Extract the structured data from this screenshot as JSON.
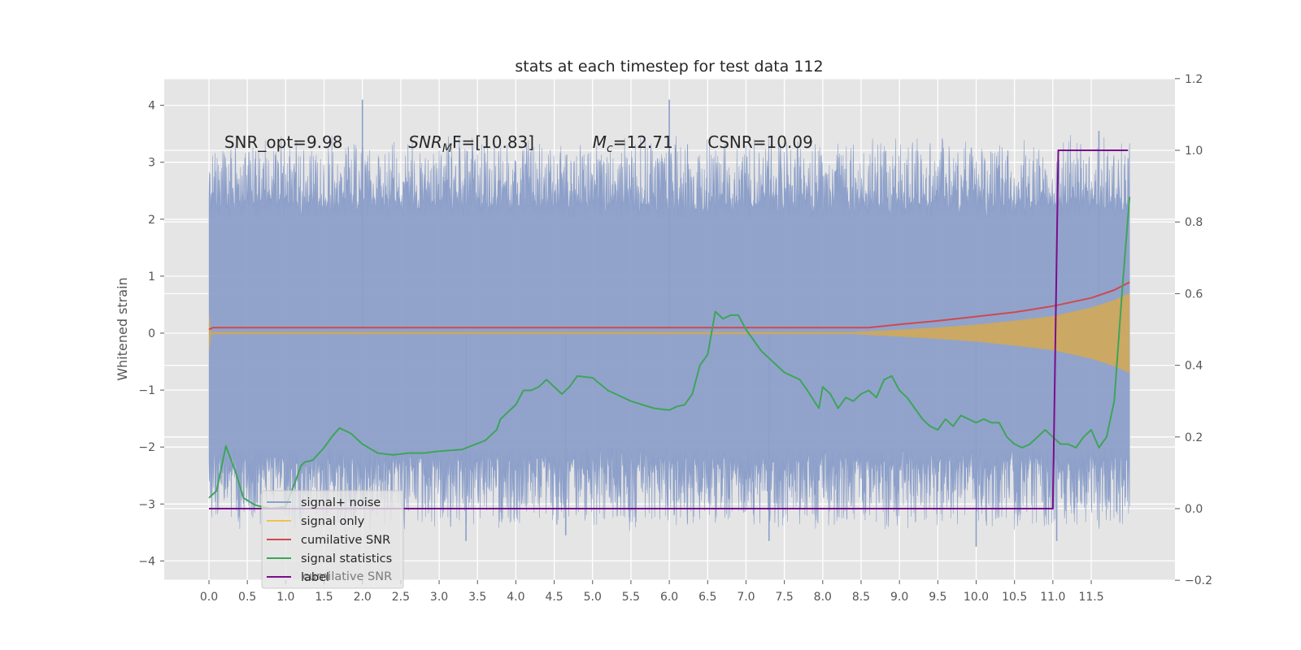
{
  "chart_data": {
    "type": "line",
    "title": "stats at each timestep for test data 112",
    "ylabel": "Whitened strain",
    "xlim": [
      -0.58,
      12.6
    ],
    "ylim": [
      -4.35,
      4.45
    ],
    "y2lim": [
      -0.2,
      1.2
    ],
    "x_ticks": [
      "0.0",
      "0.5",
      "1.0",
      "1.5",
      "2.0",
      "2.5",
      "3.0",
      "3.5",
      "4.0",
      "4.5",
      "5.0",
      "5.5",
      "6.0",
      "6.5",
      "7.0",
      "7.5",
      "8.0",
      "8.5",
      "9.0",
      "9.5",
      "10.0",
      "10.5",
      "11.0",
      "11.5"
    ],
    "y_ticks": [
      "4",
      "3",
      "2",
      "1",
      "0",
      "−1",
      "−2",
      "−3",
      "−4"
    ],
    "y2_ticks": [
      "1.2",
      "1.0",
      "0.8",
      "0.6",
      "0.4",
      "0.2",
      "0.0",
      "−0.2"
    ],
    "grid": true,
    "annotations": [
      {
        "text": "SNR_opt=9.98",
        "x": 0.2,
        "y": 3.35
      },
      {
        "main": "SNR",
        "sub": "M",
        "rest": "F=[10.83]",
        "x": 2.6,
        "y": 3.35
      },
      {
        "main": "M",
        "sub": "c",
        "rest": "=12.71",
        "x": 5.0,
        "y": 3.35
      },
      {
        "text": "CSNR=10.09",
        "x": 6.5,
        "y": 3.35
      }
    ],
    "legend": {
      "placement": "lower-left",
      "entries": [
        {
          "label": "signal+ noise",
          "color": "#8c9fc9"
        },
        {
          "label": "signal only",
          "color": "#f2c14e"
        },
        {
          "label": "cumilative SNR",
          "color": "#d0494f"
        },
        {
          "label": "signal statistics",
          "color": "#3fa45a"
        },
        {
          "label": "label",
          "color": "#7a0d8c"
        }
      ],
      "ghost_text": "cumilative SNR"
    },
    "series": [
      {
        "name": "signal+ noise",
        "axis": "left",
        "color": "#8c9fc9",
        "x_range": [
          0.0,
          12.0
        ],
        "band_low": -2.3,
        "band_high": 2.3,
        "spikes": [
          {
            "x": 2.0,
            "y": 4.1
          },
          {
            "x": 6.0,
            "y": 4.1
          },
          {
            "x": 11.6,
            "y": 3.55
          },
          {
            "x": 10.0,
            "y": -3.75
          },
          {
            "x": 11.05,
            "y": -3.65
          },
          {
            "x": 7.3,
            "y": -3.65
          },
          {
            "x": 3.35,
            "y": -3.65
          },
          {
            "x": 4.65,
            "y": -3.55
          }
        ]
      },
      {
        "name": "signal only",
        "axis": "left",
        "color": "#f2c14e",
        "x": [
          0.0,
          0.03,
          8.4,
          9.0,
          9.5,
          10.0,
          10.5,
          11.0,
          11.5,
          11.8,
          12.0
        ],
        "envelope": [
          0.35,
          0.02,
          0.02,
          0.06,
          0.1,
          0.15,
          0.22,
          0.3,
          0.45,
          0.58,
          0.7
        ]
      },
      {
        "name": "cumilative SNR",
        "axis": "right",
        "color": "#d0494f",
        "x": [
          0.0,
          0.05,
          8.6,
          9.0,
          9.5,
          10.0,
          10.5,
          11.0,
          11.5,
          11.8,
          12.0
        ],
        "y": [
          0.5,
          0.505,
          0.505,
          0.514,
          0.524,
          0.536,
          0.548,
          0.565,
          0.588,
          0.61,
          0.632
        ]
      },
      {
        "name": "signal statistics",
        "axis": "right",
        "color": "#3fa45a",
        "x": [
          0.0,
          0.1,
          0.22,
          0.35,
          0.45,
          0.6,
          0.8,
          1.0,
          1.15,
          1.2,
          1.25,
          1.35,
          1.5,
          1.6,
          1.7,
          1.85,
          2.0,
          2.2,
          2.4,
          2.6,
          2.8,
          3.0,
          3.3,
          3.6,
          3.75,
          3.8,
          3.9,
          4.0,
          4.1,
          4.2,
          4.3,
          4.4,
          4.5,
          4.6,
          4.7,
          4.8,
          5.0,
          5.2,
          5.5,
          5.8,
          6.0,
          6.1,
          6.2,
          6.3,
          6.4,
          6.5,
          6.6,
          6.7,
          6.8,
          6.9,
          7.0,
          7.2,
          7.3,
          7.4,
          7.5,
          7.7,
          7.8,
          7.95,
          8.0,
          8.1,
          8.2,
          8.3,
          8.4,
          8.5,
          8.6,
          8.7,
          8.8,
          8.9,
          9.0,
          9.1,
          9.2,
          9.3,
          9.4,
          9.5,
          9.6,
          9.7,
          9.8,
          9.9,
          10.0,
          10.1,
          10.2,
          10.3,
          10.4,
          10.5,
          10.6,
          10.7,
          10.8,
          10.9,
          11.0,
          11.1,
          11.2,
          11.3,
          11.4,
          11.5,
          11.6,
          11.7,
          11.8,
          11.9,
          12.0
        ],
        "y": [
          0.03,
          0.05,
          0.175,
          0.1,
          0.03,
          0.01,
          0.0,
          0.005,
          0.09,
          0.12,
          0.13,
          0.135,
          0.17,
          0.2,
          0.225,
          0.21,
          0.18,
          0.155,
          0.15,
          0.155,
          0.155,
          0.16,
          0.165,
          0.19,
          0.22,
          0.25,
          0.27,
          0.29,
          0.33,
          0.33,
          0.34,
          0.36,
          0.34,
          0.32,
          0.34,
          0.37,
          0.365,
          0.33,
          0.3,
          0.28,
          0.275,
          0.285,
          0.29,
          0.32,
          0.4,
          0.43,
          0.55,
          0.53,
          0.54,
          0.54,
          0.5,
          0.44,
          0.42,
          0.4,
          0.38,
          0.36,
          0.33,
          0.28,
          0.34,
          0.32,
          0.28,
          0.31,
          0.3,
          0.32,
          0.33,
          0.31,
          0.36,
          0.37,
          0.33,
          0.31,
          0.28,
          0.25,
          0.23,
          0.22,
          0.25,
          0.23,
          0.26,
          0.25,
          0.24,
          0.25,
          0.24,
          0.24,
          0.2,
          0.18,
          0.17,
          0.18,
          0.2,
          0.22,
          0.2,
          0.18,
          0.18,
          0.17,
          0.2,
          0.22,
          0.17,
          0.2,
          0.3,
          0.6,
          0.87
        ]
      },
      {
        "name": "label",
        "axis": "right",
        "color": "#7a0d8c",
        "x": [
          0.0,
          11.0,
          11.07,
          11.98
        ],
        "y": [
          0.0,
          0.0,
          1.0,
          1.0
        ]
      }
    ]
  }
}
